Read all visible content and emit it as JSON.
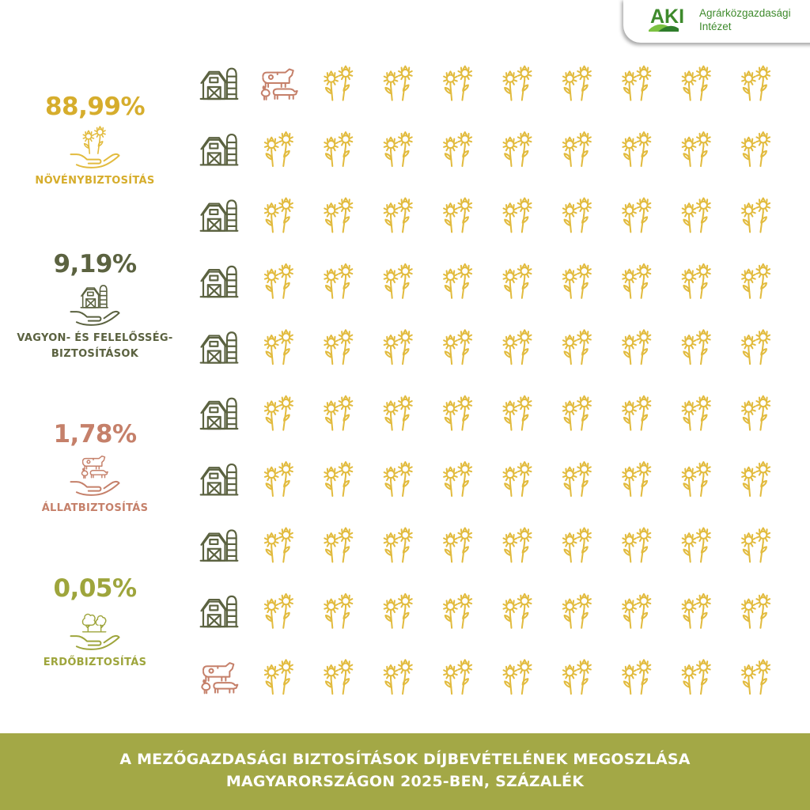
{
  "brand": {
    "logo_text": "AKI",
    "name_line1": "Agrárközgazdasági",
    "name_line2": "Intézet",
    "green": "#3e8a2c"
  },
  "chart_data": {
    "type": "waffle",
    "units_total": 100,
    "grid_columns": 10,
    "grid_rows": 10,
    "series": [
      {
        "name": "NÖVÉNYBIZTOSÍTÁS",
        "value": 88.99,
        "label": "88,99%",
        "icon": "sunflower-icon",
        "color": "#e2bb3e",
        "units": 89
      },
      {
        "name": "VAGYON- ÉS FELELŐSSÉG-BIZTOSÍTÁSOK",
        "value": 9.19,
        "label": "9,19%",
        "icon": "barn-icon",
        "color": "#5b6240",
        "units": 9
      },
      {
        "name": "ÁLLATBIZTOSÍTÁS",
        "value": 1.78,
        "label": "1,78%",
        "icon": "livestock-icon",
        "color": "#c5806a",
        "units": 2
      },
      {
        "name": "ERDŐBIZTOSÍTÁS",
        "value": 0.05,
        "label": "0,05%",
        "icon": "forest-icon",
        "color": "#9ea53c",
        "units": 0
      }
    ],
    "title": "A MEZŐGAZDASÁGI BIZTOSÍTÁSOK DÍJBEVÉTELÉNEK MEGOSZLÁSA MAGYARORSZÁGON 2025-BEN, SZÁZALÉK"
  },
  "legend": {
    "crop": {
      "pct": "88,99%",
      "label": "NÖVÉNYBIZTOSÍTÁS"
    },
    "property": {
      "pct": "9,19%",
      "label_line1": "VAGYON- ÉS FELELŐSSÉG-",
      "label_line2": "BIZTOSÍTÁSOK"
    },
    "animal": {
      "pct": "1,78%",
      "label": "ÁLLATBIZTOSÍTÁS"
    },
    "forest": {
      "pct": "0,05%",
      "label": "ERDŐBIZTOSÍTÁS"
    }
  },
  "footer": {
    "line1": "A MEZŐGAZDASÁGI BIZTOSÍTÁSOK DÍJBEVÉTELÉNEK MEGOSZLÁSA",
    "line2": "MAGYARORSZÁGON 2025-BEN, SZÁZALÉK",
    "background": "#a3a846"
  }
}
